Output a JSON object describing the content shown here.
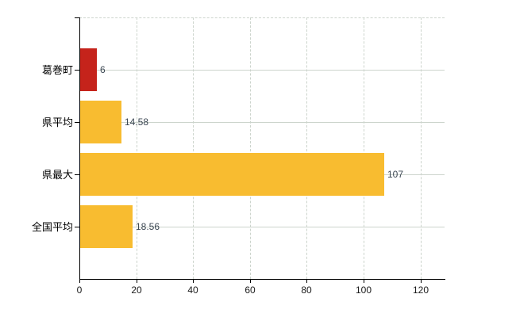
{
  "chart_data": {
    "type": "bar",
    "orientation": "horizontal",
    "title": "",
    "xlabel": "",
    "ylabel": "",
    "categories": [
      "葛巻町",
      "県平均",
      "県最大",
      "全国平均"
    ],
    "values": [
      6,
      14.58,
      107,
      18.56
    ],
    "value_labels": [
      "6",
      "14.58",
      "107",
      "18.56"
    ],
    "bar_colors": [
      "#c5231b",
      "#f8bc30",
      "#f8bc30",
      "#f8bc30"
    ],
    "x_ticks": [
      0,
      20,
      40,
      60,
      80,
      100,
      120
    ],
    "xlim": [
      0,
      128.5
    ],
    "grid": true,
    "legend": false
  },
  "colors": {
    "background": "#ffffff",
    "axis": "#000000",
    "grid": "#ccd4cc",
    "value_label_text": "#3c4753",
    "tick_label_text": "#1a1a1a",
    "bar_highlight_red": "#c5231b",
    "bar_gold": "#f8bc30"
  }
}
